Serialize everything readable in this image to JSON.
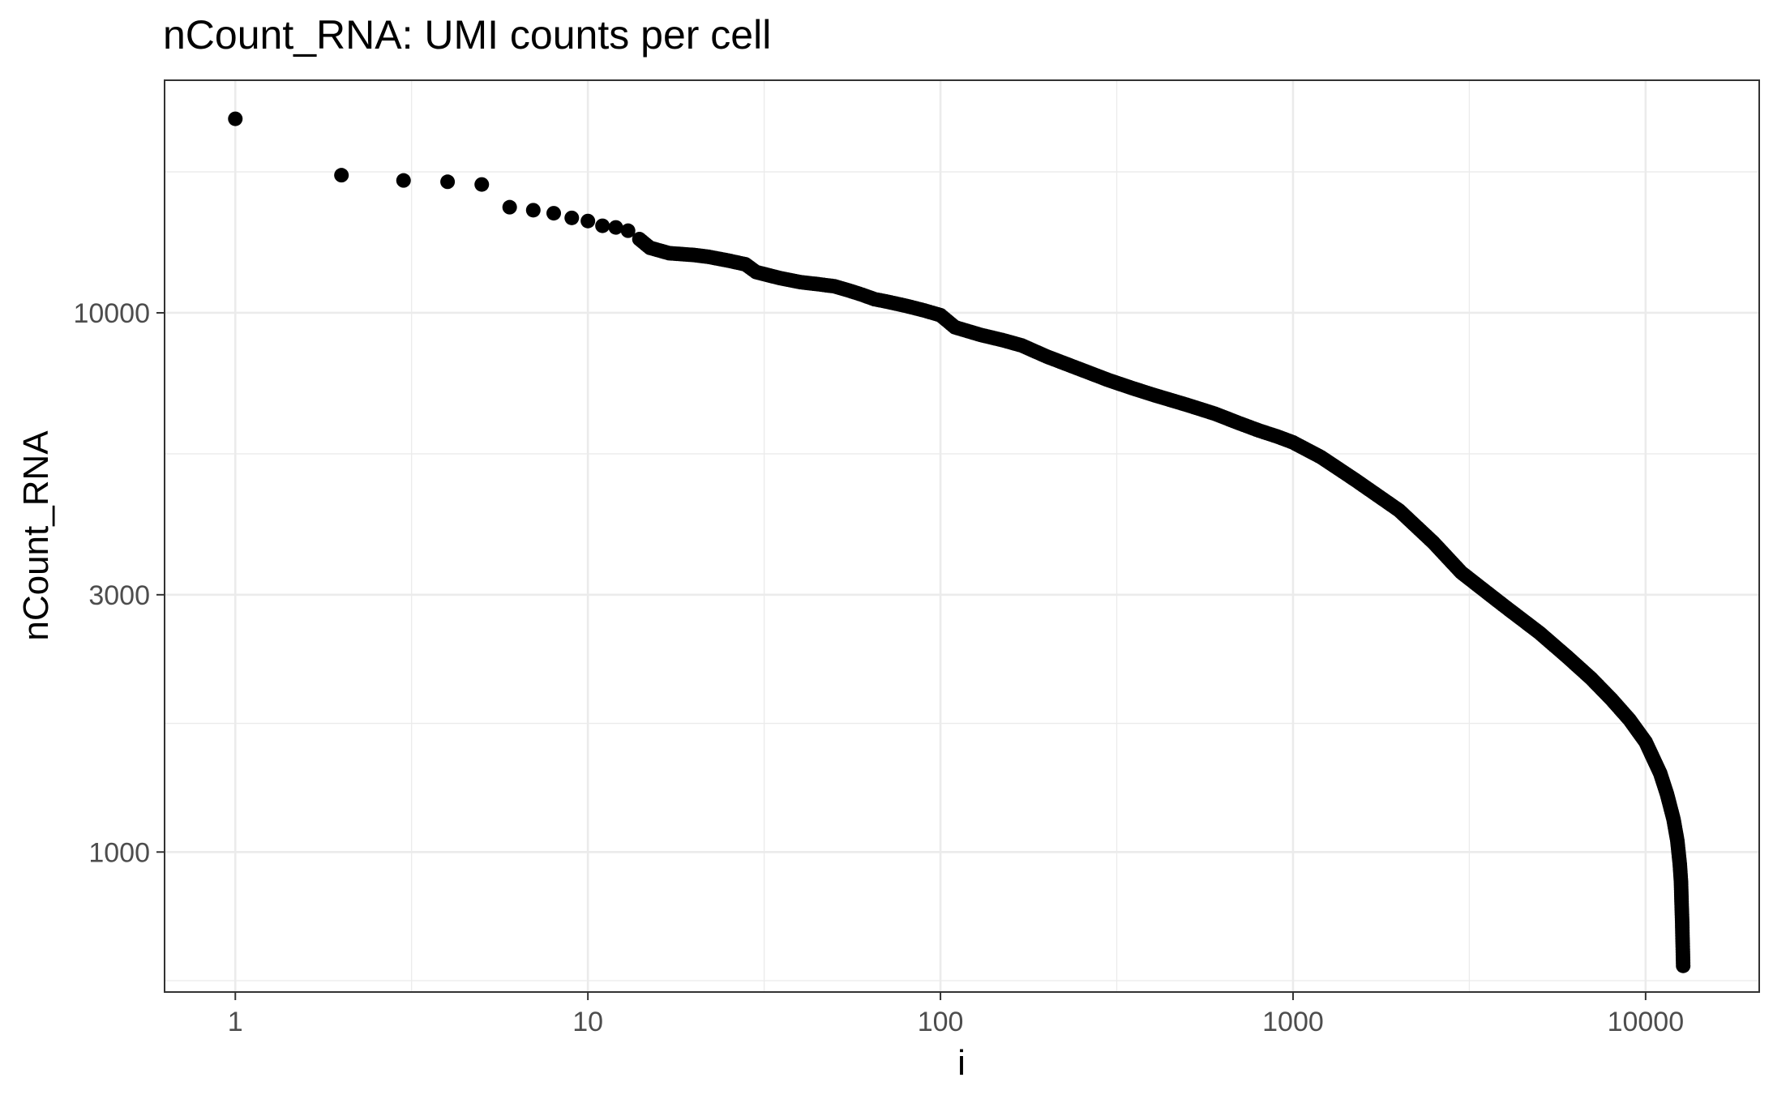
{
  "chart_data": {
    "type": "scatter",
    "title": "nCount_RNA: UMI counts per cell",
    "xlabel": "i",
    "ylabel": "nCount_RNA",
    "x_scale": "log10",
    "y_scale": "log10",
    "xlim": [
      0.63,
      21000
    ],
    "ylim": [
      550,
      27000
    ],
    "x_ticks": [
      {
        "value": 1,
        "label": "1"
      },
      {
        "value": 10,
        "label": "10"
      },
      {
        "value": 100,
        "label": "100"
      },
      {
        "value": 1000,
        "label": "1000"
      },
      {
        "value": 10000,
        "label": "10000"
      }
    ],
    "y_ticks": [
      {
        "value": 1000,
        "label": "1000"
      },
      {
        "value": 3000,
        "label": "3000"
      },
      {
        "value": 10000,
        "label": "10000"
      }
    ],
    "grid": true,
    "point_color": "#000000",
    "grid_color": "#ebebeb",
    "points": [
      [
        1,
        22900
      ],
      [
        2,
        18000
      ],
      [
        3,
        17600
      ],
      [
        4,
        17500
      ],
      [
        5,
        17300
      ],
      [
        6,
        15700
      ],
      [
        7,
        15500
      ],
      [
        8,
        15300
      ],
      [
        9,
        15000
      ],
      [
        10,
        14800
      ],
      [
        11,
        14500
      ],
      [
        12,
        14400
      ],
      [
        13,
        14200
      ],
      [
        14,
        13700
      ],
      [
        15,
        13200
      ],
      [
        17,
        12900
      ],
      [
        20,
        12800
      ],
      [
        22,
        12700
      ],
      [
        25,
        12500
      ],
      [
        28,
        12300
      ],
      [
        30,
        11900
      ],
      [
        35,
        11600
      ],
      [
        40,
        11400
      ],
      [
        45,
        11300
      ],
      [
        50,
        11200
      ],
      [
        55,
        11000
      ],
      [
        60,
        10800
      ],
      [
        65,
        10600
      ],
      [
        70,
        10500
      ],
      [
        80,
        10300
      ],
      [
        90,
        10100
      ],
      [
        100,
        9900
      ],
      [
        110,
        9400
      ],
      [
        130,
        9100
      ],
      [
        150,
        8900
      ],
      [
        170,
        8700
      ],
      [
        200,
        8300
      ],
      [
        250,
        7850
      ],
      [
        300,
        7500
      ],
      [
        350,
        7250
      ],
      [
        400,
        7050
      ],
      [
        500,
        6750
      ],
      [
        600,
        6500
      ],
      [
        700,
        6250
      ],
      [
        800,
        6050
      ],
      [
        900,
        5900
      ],
      [
        1000,
        5750
      ],
      [
        1200,
        5400
      ],
      [
        1500,
        4900
      ],
      [
        2000,
        4300
      ],
      [
        2500,
        3750
      ],
      [
        3000,
        3300
      ],
      [
        3500,
        3050
      ],
      [
        4000,
        2850
      ],
      [
        5000,
        2550
      ],
      [
        6000,
        2300
      ],
      [
        7000,
        2100
      ],
      [
        8000,
        1920
      ],
      [
        9000,
        1760
      ],
      [
        10000,
        1600
      ],
      [
        11000,
        1400
      ],
      [
        11500,
        1280
      ],
      [
        12000,
        1150
      ],
      [
        12300,
        1050
      ],
      [
        12500,
        950
      ],
      [
        12600,
        880
      ],
      [
        12650,
        800
      ],
      [
        12700,
        740
      ],
      [
        12720,
        700
      ],
      [
        12750,
        660
      ],
      [
        12770,
        630
      ],
      [
        12780,
        615
      ]
    ]
  }
}
